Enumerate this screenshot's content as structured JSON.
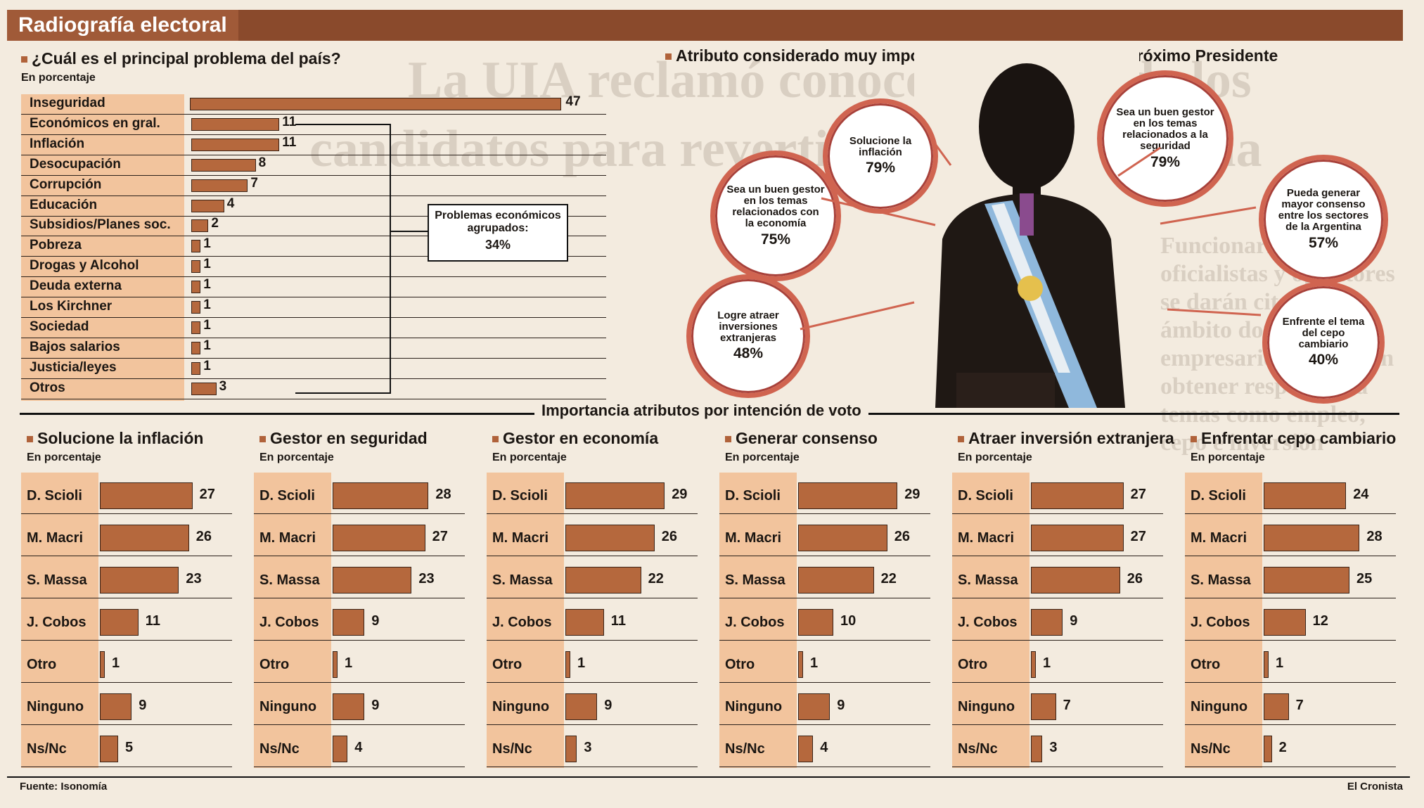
{
  "header": {
    "title": "Radiografía electoral"
  },
  "problems": {
    "title": "¿Cuál es el principal problema del país?",
    "unit": "En porcentaje",
    "callout": {
      "line1": "Problemas económicos",
      "line2": "agrupados:",
      "value": "34%"
    }
  },
  "attributes": {
    "title": "Atributo considerado muy importante que debería tener el próximo Presidente",
    "items": [
      {
        "text": "Solucione la inflación",
        "pct": "79%"
      },
      {
        "text": "Sea un buen gestor en los temas relacionados con la economía",
        "pct": "75%"
      },
      {
        "text": "Logre atraer inversiones extranjeras",
        "pct": "48%"
      },
      {
        "text": "Sea un buen gestor en los temas relacionados a la seguridad",
        "pct": "79%"
      },
      {
        "text": "Pueda generar mayor consenso entre los sectores de la Argentina",
        "pct": "57%"
      },
      {
        "text": "Enfrente el tema del cepo cambiario",
        "pct": "40%"
      }
    ],
    "colors": {
      "ring": "#d06450",
      "bar": "#b5683d",
      "strip": "#f2c49d"
    }
  },
  "intention": {
    "title": "Importancia atributos por intención de voto"
  },
  "footer": {
    "source": "Fuente: Isonomía",
    "brand": "El Cronista"
  },
  "chart_data": [
    {
      "type": "bar",
      "title": "¿Cuál es el principal problema del país?",
      "ylabel": "En porcentaje",
      "categories": [
        "Inseguridad",
        "Económicos en gral.",
        "Inflación",
        "Desocupación",
        "Corrupción",
        "Educación",
        "Subsidios/Planes soc.",
        "Pobreza",
        "Drogas y Alcohol",
        "Deuda externa",
        "Los Kirchner",
        "Sociedad",
        "Bajos salarios",
        "Justicia/leyes",
        "Otros"
      ],
      "values": [
        47,
        11,
        11,
        8,
        7,
        4,
        2,
        1,
        1,
        1,
        1,
        1,
        1,
        1,
        3
      ]
    },
    {
      "type": "bar",
      "title": "Solucione la inflación",
      "ylabel": "En porcentaje",
      "categories": [
        "D. Scioli",
        "M. Macri",
        "S. Massa",
        "J. Cobos",
        "Otro",
        "Ninguno",
        "Ns/Nc"
      ],
      "values": [
        27,
        26,
        23,
        11,
        1,
        9,
        5
      ]
    },
    {
      "type": "bar",
      "title": "Gestor en seguridad",
      "ylabel": "En porcentaje",
      "categories": [
        "D. Scioli",
        "M. Macri",
        "S. Massa",
        "J. Cobos",
        "Otro",
        "Ninguno",
        "Ns/Nc"
      ],
      "values": [
        28,
        27,
        23,
        9,
        1,
        9,
        4
      ]
    },
    {
      "type": "bar",
      "title": "Gestor en economía",
      "ylabel": "En porcentaje",
      "categories": [
        "D. Scioli",
        "M. Macri",
        "S. Massa",
        "J. Cobos",
        "Otro",
        "Ninguno",
        "Ns/Nc"
      ],
      "values": [
        29,
        26,
        22,
        11,
        1,
        9,
        3
      ]
    },
    {
      "type": "bar",
      "title": "Generar consenso",
      "ylabel": "En porcentaje",
      "categories": [
        "D. Scioli",
        "M. Macri",
        "S. Massa",
        "J. Cobos",
        "Otro",
        "Ninguno",
        "Ns/Nc"
      ],
      "values": [
        29,
        26,
        22,
        10,
        1,
        9,
        4
      ]
    },
    {
      "type": "bar",
      "title": "Atraer inversión extranjera",
      "ylabel": "En porcentaje",
      "categories": [
        "D. Scioli",
        "M. Macri",
        "S. Massa",
        "J. Cobos",
        "Otro",
        "Ninguno",
        "Ns/Nc"
      ],
      "values": [
        27,
        27,
        26,
        9,
        1,
        7,
        3
      ]
    },
    {
      "type": "bar",
      "title": "Enfrentar cepo cambiario",
      "ylabel": "En porcentaje",
      "categories": [
        "D. Scioli",
        "M. Macri",
        "S. Massa",
        "J. Cobos",
        "Otro",
        "Ninguno",
        "Ns/Nc"
      ],
      "values": [
        24,
        28,
        25,
        12,
        1,
        7,
        2
      ]
    }
  ]
}
